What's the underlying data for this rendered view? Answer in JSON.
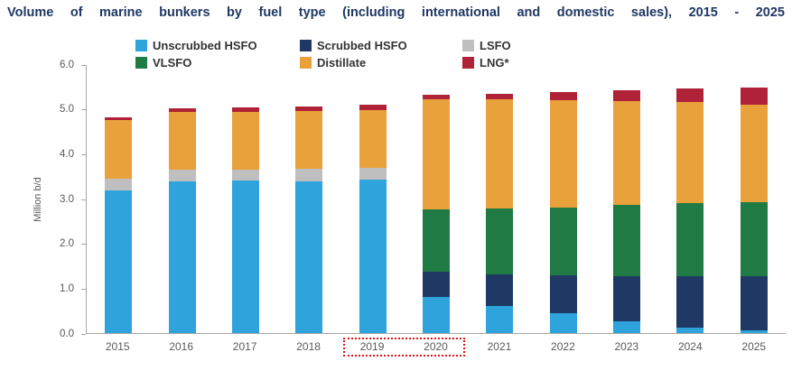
{
  "page": {
    "background": "#FFFFFF"
  },
  "chart_data": {
    "type": "bar",
    "stacked": true,
    "title": "Volume of marine bunkers by fuel type (including international and domestic sales), 2015 - 2025",
    "title_color": "#1F3864",
    "ylabel": "Million b/d",
    "ylim": [
      0,
      6
    ],
    "yticks": [
      "0.0",
      "1.0",
      "2.0",
      "3.0",
      "4.0",
      "5.0",
      "6.0"
    ],
    "grid": false,
    "legend_position": "top",
    "axis_text_color": "#595959",
    "axis_line_color": "#A6A6A6",
    "categories": [
      "2015",
      "2016",
      "2017",
      "2018",
      "2019",
      "2020",
      "2021",
      "2022",
      "2023",
      "2024",
      "2025"
    ],
    "series": [
      {
        "name": "Unscrubbed HSFO",
        "color": "#2EA3DC",
        "values": [
          3.2,
          3.4,
          3.42,
          3.4,
          3.44,
          0.8,
          0.6,
          0.44,
          0.26,
          0.12,
          0.06
        ]
      },
      {
        "name": "Scrubbed HSFO",
        "color": "#1F3864",
        "values": [
          0,
          0,
          0,
          0,
          0,
          0.57,
          0.71,
          0.85,
          1.01,
          1.15,
          1.21
        ]
      },
      {
        "name": "LSFO",
        "color": "#BFBFBF",
        "values": [
          0.26,
          0.26,
          0.24,
          0.28,
          0.26,
          0,
          0,
          0,
          0,
          0,
          0
        ]
      },
      {
        "name": "VLSFO",
        "color": "#207A44",
        "values": [
          0,
          0,
          0,
          0,
          0,
          1.39,
          1.47,
          1.51,
          1.59,
          1.63,
          1.65
        ]
      },
      {
        "name": "Distillate",
        "color": "#E9A23B",
        "values": [
          1.31,
          1.29,
          1.29,
          1.29,
          1.29,
          2.47,
          2.45,
          2.41,
          2.33,
          2.27,
          2.19
        ]
      },
      {
        "name": "LNG*",
        "color": "#B02237",
        "values": [
          0.06,
          0.08,
          0.1,
          0.1,
          0.12,
          0.1,
          0.13,
          0.19,
          0.25,
          0.31,
          0.39
        ]
      }
    ],
    "highlight": {
      "from": "2019",
      "to": "2020",
      "border_color": "#E1151C",
      "style": "dotted"
    }
  }
}
